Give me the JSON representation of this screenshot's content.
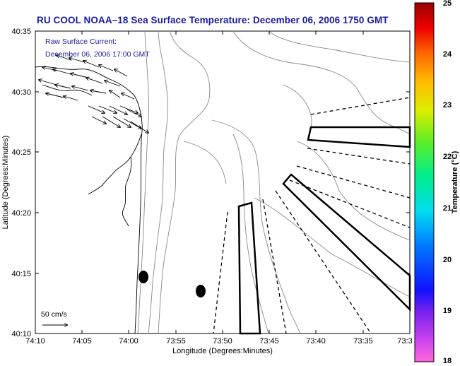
{
  "title": "RU COOL  NOAA–18  Sea Surface Temperature:  December 06, 2006 1750 GMT",
  "current_label_line1": "Raw Surface Current:",
  "current_label_line2": "December 06, 2006 17:00 GMT",
  "scale_label": "50 cm/s",
  "axes": {
    "xlabel": "Longitude (Degrees:Minutes)",
    "ylabel": "Latitude (Degrees:Minutes)",
    "x_ticks": [
      "74:10",
      "74:05",
      "74:00",
      "73:55",
      "73:50",
      "73:45",
      "73:40",
      "73:35",
      "73:3"
    ],
    "y_ticks": [
      "40:35",
      "40:30",
      "40:25",
      "40:20",
      "40:15",
      "40:10"
    ]
  },
  "colorbar": {
    "label": "Temperature (°C)",
    "ticks": [
      "25",
      "24",
      "23",
      "22",
      "21",
      "20",
      "19",
      "18"
    ],
    "range": [
      18,
      25
    ]
  },
  "colors": {
    "title": "#1a1aa0",
    "coastline": "#000000",
    "contours": "#888888"
  },
  "markers": [
    "ellipse",
    "ellipse"
  ]
}
